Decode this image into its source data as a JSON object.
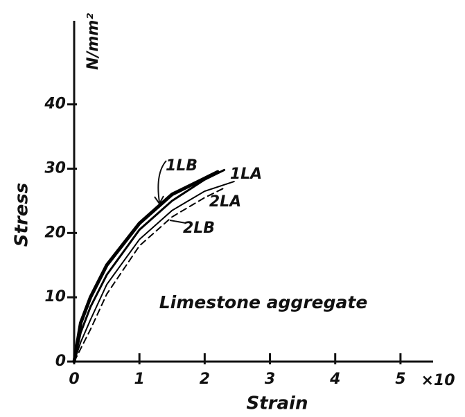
{
  "chart_data": {
    "type": "line",
    "x_label": "Strain",
    "y_label": "Stress",
    "y_unit": "N/mm²",
    "x_multiplier": "×10",
    "annotation": "Limestone aggregate",
    "series": [
      {
        "name": "1LB",
        "color": "#000000",
        "line_style": "solid",
        "x": [
          0,
          0.1,
          0.25,
          0.5,
          1,
          1.5,
          2,
          2.2
        ],
        "values": [
          0,
          6,
          10,
          15,
          21.5,
          26,
          28.5,
          29.5
        ]
      },
      {
        "name": "1LA",
        "color": "#000000",
        "line_style": "solid",
        "x": [
          0,
          0.1,
          0.25,
          0.5,
          1,
          1.5,
          2,
          2.3
        ],
        "values": [
          0,
          4.5,
          8.5,
          13.5,
          20.5,
          25,
          28.3,
          29.8
        ]
      },
      {
        "name": "2LA",
        "color": "#000000",
        "line_style": "solid",
        "x": [
          0,
          0.1,
          0.25,
          0.5,
          1,
          1.5,
          2,
          2.45
        ],
        "values": [
          0,
          3,
          6.5,
          12,
          19,
          23.5,
          26.5,
          28
        ]
      },
      {
        "name": "2LB",
        "color": "#000000",
        "line_style": "dashed",
        "x": [
          0,
          0.1,
          0.25,
          0.5,
          1,
          1.5,
          2,
          2.3
        ],
        "values": [
          0,
          2,
          5,
          10.5,
          18,
          22.5,
          25.5,
          27
        ]
      }
    ],
    "xlim": [
      0,
      5.5
    ],
    "ylim": [
      0,
      53
    ],
    "xticks": [
      0,
      1,
      2,
      3,
      4,
      5
    ],
    "yticks": [
      0,
      10,
      20,
      30,
      40
    ]
  }
}
